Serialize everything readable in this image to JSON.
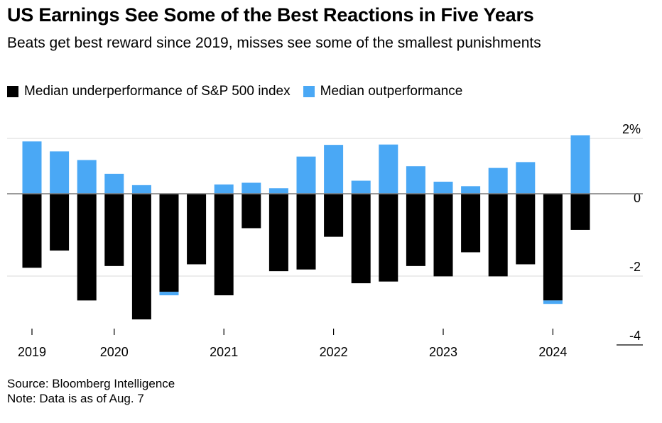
{
  "title": "US Earnings See Some of the Best Reactions in Five Years",
  "subtitle": "Beats get best reward since 2019, misses see some of the smallest punishments",
  "colors": {
    "underperformance": "#000000",
    "outperformance": "#4aa8f5",
    "grid": "#d9d9d9",
    "axis": "#000000"
  },
  "chart_data": {
    "type": "bar",
    "ylim": [
      -4,
      2
    ],
    "yticks": [
      {
        "value": 2,
        "label": "2%"
      },
      {
        "value": 0,
        "label": "0"
      },
      {
        "value": -2,
        "label": "-2"
      },
      {
        "value": -4,
        "label": "-4"
      }
    ],
    "xticks": [
      {
        "index": 0,
        "label": "2019"
      },
      {
        "index": 3,
        "label": "2020"
      },
      {
        "index": 7,
        "label": "2021"
      },
      {
        "index": 11,
        "label": "2022"
      },
      {
        "index": 15,
        "label": "2023"
      },
      {
        "index": 19,
        "label": "2024"
      }
    ],
    "grid": true,
    "legend_placement": "top-left",
    "series": [
      {
        "name": "Median underperformance of S&P 500 index",
        "values": [
          -2.15,
          -1.65,
          -3.1,
          -2.1,
          -3.65,
          -2.85,
          -2.05,
          -2.95,
          -1.0,
          -2.25,
          -2.2,
          -1.25,
          -2.6,
          -2.55,
          -2.1,
          -2.4,
          -1.7,
          -2.4,
          -2.05,
          -3.1,
          -1.05
        ]
      },
      {
        "name": "Median outperformance",
        "values": [
          1.52,
          1.23,
          0.98,
          0.58,
          0.25,
          -2.95,
          -2.05,
          0.27,
          0.32,
          0.16,
          1.08,
          1.42,
          0.38,
          1.43,
          0.8,
          0.35,
          0.22,
          0.75,
          0.92,
          -3.2,
          1.7
        ]
      }
    ]
  },
  "footer": {
    "source": "Source: Bloomberg Intelligence",
    "note": "Note: Data is as of Aug. 7"
  }
}
